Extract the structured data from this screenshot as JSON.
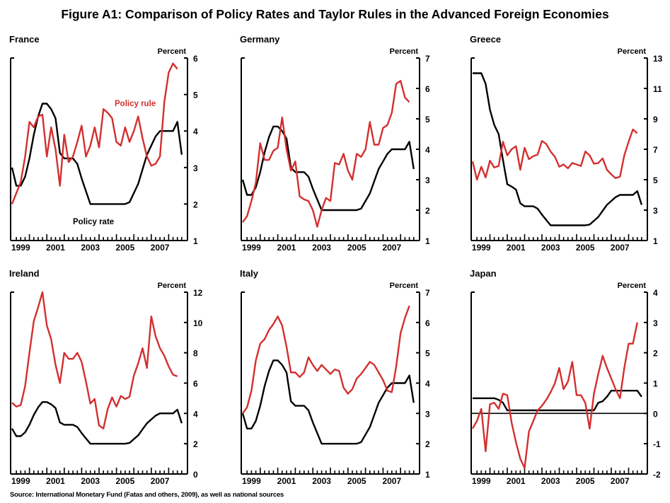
{
  "title": "Figure A1: Comparison of Policy Rates and Taylor Rules in the Advanced Foreign Economies",
  "source": "Source: International Monetary Fund (Fatas and others, 2009), as well as national sources",
  "colors": {
    "policy_rule": "#d32f2f",
    "policy_rate": "#000000"
  },
  "chart_data": [
    {
      "type": "line",
      "title": "France",
      "ylabel": "Percent",
      "ylim": [
        1,
        6
      ],
      "yticks": [
        1,
        2,
        3,
        4,
        5,
        6
      ],
      "xticks": [
        "1999",
        "2001",
        "2003",
        "2005",
        "2007"
      ],
      "x_start": "1999Q1",
      "frequency": "quarterly",
      "annotations": [
        "Policy rule",
        "Policy rate"
      ],
      "series": [
        {
          "name": "Policy rule",
          "values": [
            2.0,
            2.3,
            2.6,
            3.3,
            4.25,
            4.1,
            4.4,
            4.45,
            3.3,
            4.1,
            3.5,
            2.5,
            3.9,
            3.15,
            3.3,
            3.7,
            4.15,
            3.3,
            3.6,
            4.1,
            3.55,
            4.6,
            4.5,
            4.35,
            3.7,
            3.6,
            4.1,
            3.7,
            4.0,
            4.4,
            3.8,
            3.3,
            3.05,
            3.1,
            3.3,
            4.8,
            5.6,
            5.85,
            5.7
          ]
        },
        {
          "name": "Policy rate",
          "values": [
            3.0,
            2.5,
            2.5,
            2.75,
            3.25,
            3.9,
            4.4,
            4.75,
            4.75,
            4.6,
            4.35,
            3.4,
            3.25,
            3.25,
            3.25,
            3.1,
            2.7,
            2.35,
            2.0,
            2.0,
            2.0,
            2.0,
            2.0,
            2.0,
            2.0,
            2.0,
            2.0,
            2.05,
            2.3,
            2.55,
            2.95,
            3.35,
            3.6,
            3.85,
            4.0,
            4.0,
            4.0,
            4.0,
            4.25,
            3.35
          ]
        }
      ]
    },
    {
      "type": "line",
      "title": "Germany",
      "ylabel": "Percent",
      "ylim": [
        1,
        7
      ],
      "yticks": [
        1,
        2,
        3,
        4,
        5,
        6,
        7
      ],
      "xticks": [
        "1999",
        "2001",
        "2003",
        "2005",
        "2007"
      ],
      "x_start": "1999Q1",
      "frequency": "quarterly",
      "series": [
        {
          "name": "Policy rule",
          "values": [
            1.6,
            1.8,
            2.3,
            2.9,
            4.2,
            3.65,
            3.65,
            3.95,
            4.05,
            5.05,
            4.0,
            3.3,
            3.6,
            2.45,
            2.35,
            2.3,
            2.0,
            1.45,
            2.0,
            2.4,
            2.3,
            3.55,
            3.5,
            3.85,
            3.3,
            3.0,
            3.85,
            3.75,
            4.0,
            4.9,
            4.15,
            4.15,
            4.7,
            4.8,
            5.2,
            6.15,
            6.25,
            5.7,
            5.55
          ]
        },
        {
          "name": "Policy rate",
          "values": [
            3.0,
            2.5,
            2.5,
            2.75,
            3.25,
            3.9,
            4.4,
            4.75,
            4.75,
            4.6,
            4.35,
            3.4,
            3.25,
            3.25,
            3.25,
            3.1,
            2.7,
            2.35,
            2.0,
            2.0,
            2.0,
            2.0,
            2.0,
            2.0,
            2.0,
            2.0,
            2.0,
            2.05,
            2.3,
            2.55,
            2.95,
            3.35,
            3.6,
            3.85,
            4.0,
            4.0,
            4.0,
            4.0,
            4.25,
            3.35
          ]
        }
      ]
    },
    {
      "type": "line",
      "title": "Greece",
      "ylabel": "Percent",
      "ylim": [
        1,
        13
      ],
      "yticks": [
        1,
        3,
        5,
        7,
        9,
        11,
        13
      ],
      "xticks": [
        "1999",
        "2001",
        "2003",
        "2005",
        "2007"
      ],
      "x_start": "1999Q1",
      "frequency": "quarterly",
      "series": [
        {
          "name": "Policy rule",
          "values": [
            6.2,
            5.0,
            5.85,
            5.15,
            6.25,
            5.8,
            5.9,
            7.5,
            6.6,
            7.0,
            7.2,
            5.65,
            7.1,
            6.35,
            6.55,
            6.65,
            7.55,
            7.35,
            6.85,
            6.5,
            5.85,
            6.0,
            5.75,
            6.1,
            6.0,
            5.9,
            6.85,
            6.6,
            6.05,
            6.1,
            6.4,
            5.65,
            5.35,
            5.1,
            5.2,
            6.6,
            7.5,
            8.3,
            8.05
          ]
        },
        {
          "name": "Policy rate",
          "values": [
            12.0,
            12.0,
            12.0,
            11.3,
            9.6,
            8.6,
            8.0,
            6.3,
            4.7,
            4.55,
            4.35,
            3.45,
            3.25,
            3.25,
            3.25,
            3.1,
            2.7,
            2.35,
            2.0,
            2.0,
            2.0,
            2.0,
            2.0,
            2.0,
            2.0,
            2.0,
            2.0,
            2.05,
            2.3,
            2.55,
            2.95,
            3.35,
            3.6,
            3.85,
            4.0,
            4.0,
            4.0,
            4.0,
            4.25,
            3.35
          ]
        }
      ]
    },
    {
      "type": "line",
      "title": "Ireland",
      "ylabel": "Percent",
      "ylim": [
        0,
        12
      ],
      "yticks": [
        0,
        2,
        4,
        6,
        8,
        10,
        12
      ],
      "xticks": [
        "1999",
        "2001",
        "2003",
        "2005",
        "2007"
      ],
      "x_start": "1999Q1",
      "frequency": "quarterly",
      "series": [
        {
          "name": "Policy rule",
          "values": [
            4.7,
            4.45,
            4.55,
            5.8,
            8.0,
            10.1,
            11.0,
            12.0,
            9.8,
            8.9,
            7.2,
            6.0,
            8.0,
            7.6,
            7.6,
            8.0,
            7.4,
            6.1,
            4.65,
            4.95,
            3.2,
            3.0,
            4.3,
            5.05,
            4.45,
            5.15,
            4.95,
            5.1,
            6.5,
            7.3,
            8.3,
            7.0,
            10.4,
            9.1,
            8.3,
            7.8,
            7.1,
            6.55,
            6.45
          ]
        },
        {
          "name": "Policy rate",
          "values": [
            3.0,
            2.5,
            2.5,
            2.75,
            3.25,
            3.9,
            4.4,
            4.75,
            4.75,
            4.6,
            4.35,
            3.4,
            3.25,
            3.25,
            3.25,
            3.1,
            2.7,
            2.35,
            2.0,
            2.0,
            2.0,
            2.0,
            2.0,
            2.0,
            2.0,
            2.0,
            2.0,
            2.05,
            2.3,
            2.55,
            2.95,
            3.35,
            3.6,
            3.85,
            4.0,
            4.0,
            4.0,
            4.0,
            4.25,
            3.35
          ]
        }
      ]
    },
    {
      "type": "line",
      "title": "Italy",
      "ylabel": "Percent",
      "ylim": [
        1,
        7
      ],
      "yticks": [
        1,
        2,
        3,
        4,
        5,
        6,
        7
      ],
      "xticks": [
        "1999",
        "2001",
        "2003",
        "2005",
        "2007"
      ],
      "x_start": "1999Q1",
      "frequency": "quarterly",
      "series": [
        {
          "name": "Policy rule",
          "values": [
            3.0,
            3.2,
            3.75,
            4.75,
            5.3,
            5.45,
            5.75,
            5.95,
            6.2,
            5.9,
            5.2,
            4.35,
            4.35,
            4.2,
            4.35,
            4.85,
            4.6,
            4.4,
            4.6,
            4.45,
            4.3,
            4.45,
            4.4,
            3.85,
            3.65,
            3.8,
            4.15,
            4.3,
            4.5,
            4.7,
            4.6,
            4.35,
            4.1,
            3.75,
            3.7,
            4.55,
            5.65,
            6.15,
            6.55
          ]
        },
        {
          "name": "Policy rate",
          "values": [
            3.0,
            2.5,
            2.5,
            2.75,
            3.25,
            3.9,
            4.4,
            4.75,
            4.75,
            4.6,
            4.35,
            3.4,
            3.25,
            3.25,
            3.25,
            3.1,
            2.7,
            2.35,
            2.0,
            2.0,
            2.0,
            2.0,
            2.0,
            2.0,
            2.0,
            2.0,
            2.0,
            2.05,
            2.3,
            2.55,
            2.95,
            3.35,
            3.6,
            3.85,
            4.0,
            4.0,
            4.0,
            4.0,
            4.25,
            3.35
          ]
        }
      ]
    },
    {
      "type": "line",
      "title": "Japan",
      "ylabel": "Percent",
      "ylim": [
        -2,
        4
      ],
      "yticks": [
        -2,
        -1,
        0,
        1,
        2,
        3,
        4
      ],
      "zero_line": true,
      "xticks": [
        "1999",
        "2001",
        "2003",
        "2005",
        "2007"
      ],
      "x_start": "1999Q1",
      "frequency": "quarterly",
      "series": [
        {
          "name": "Policy rule",
          "values": [
            -0.5,
            -0.25,
            0.15,
            -1.25,
            0.3,
            0.35,
            0.15,
            0.65,
            0.6,
            -0.3,
            -0.95,
            -1.5,
            -1.8,
            -0.6,
            -0.25,
            0.1,
            0.25,
            0.45,
            0.7,
            1.0,
            1.5,
            0.8,
            1.05,
            1.7,
            0.6,
            0.6,
            0.35,
            -0.5,
            0.65,
            1.3,
            1.9,
            1.5,
            1.15,
            0.8,
            0.5,
            1.5,
            2.3,
            2.3,
            3.0
          ]
        },
        {
          "name": "Policy rate",
          "values": [
            0.5,
            0.5,
            0.5,
            0.5,
            0.5,
            0.5,
            0.45,
            0.35,
            0.1,
            0.1,
            0.1,
            0.1,
            0.1,
            0.1,
            0.1,
            0.1,
            0.1,
            0.1,
            0.1,
            0.1,
            0.1,
            0.1,
            0.1,
            0.1,
            0.1,
            0.1,
            0.1,
            0.1,
            0.1,
            0.35,
            0.4,
            0.55,
            0.75,
            0.75,
            0.75,
            0.75,
            0.75,
            0.75,
            0.75,
            0.55
          ]
        }
      ]
    }
  ]
}
